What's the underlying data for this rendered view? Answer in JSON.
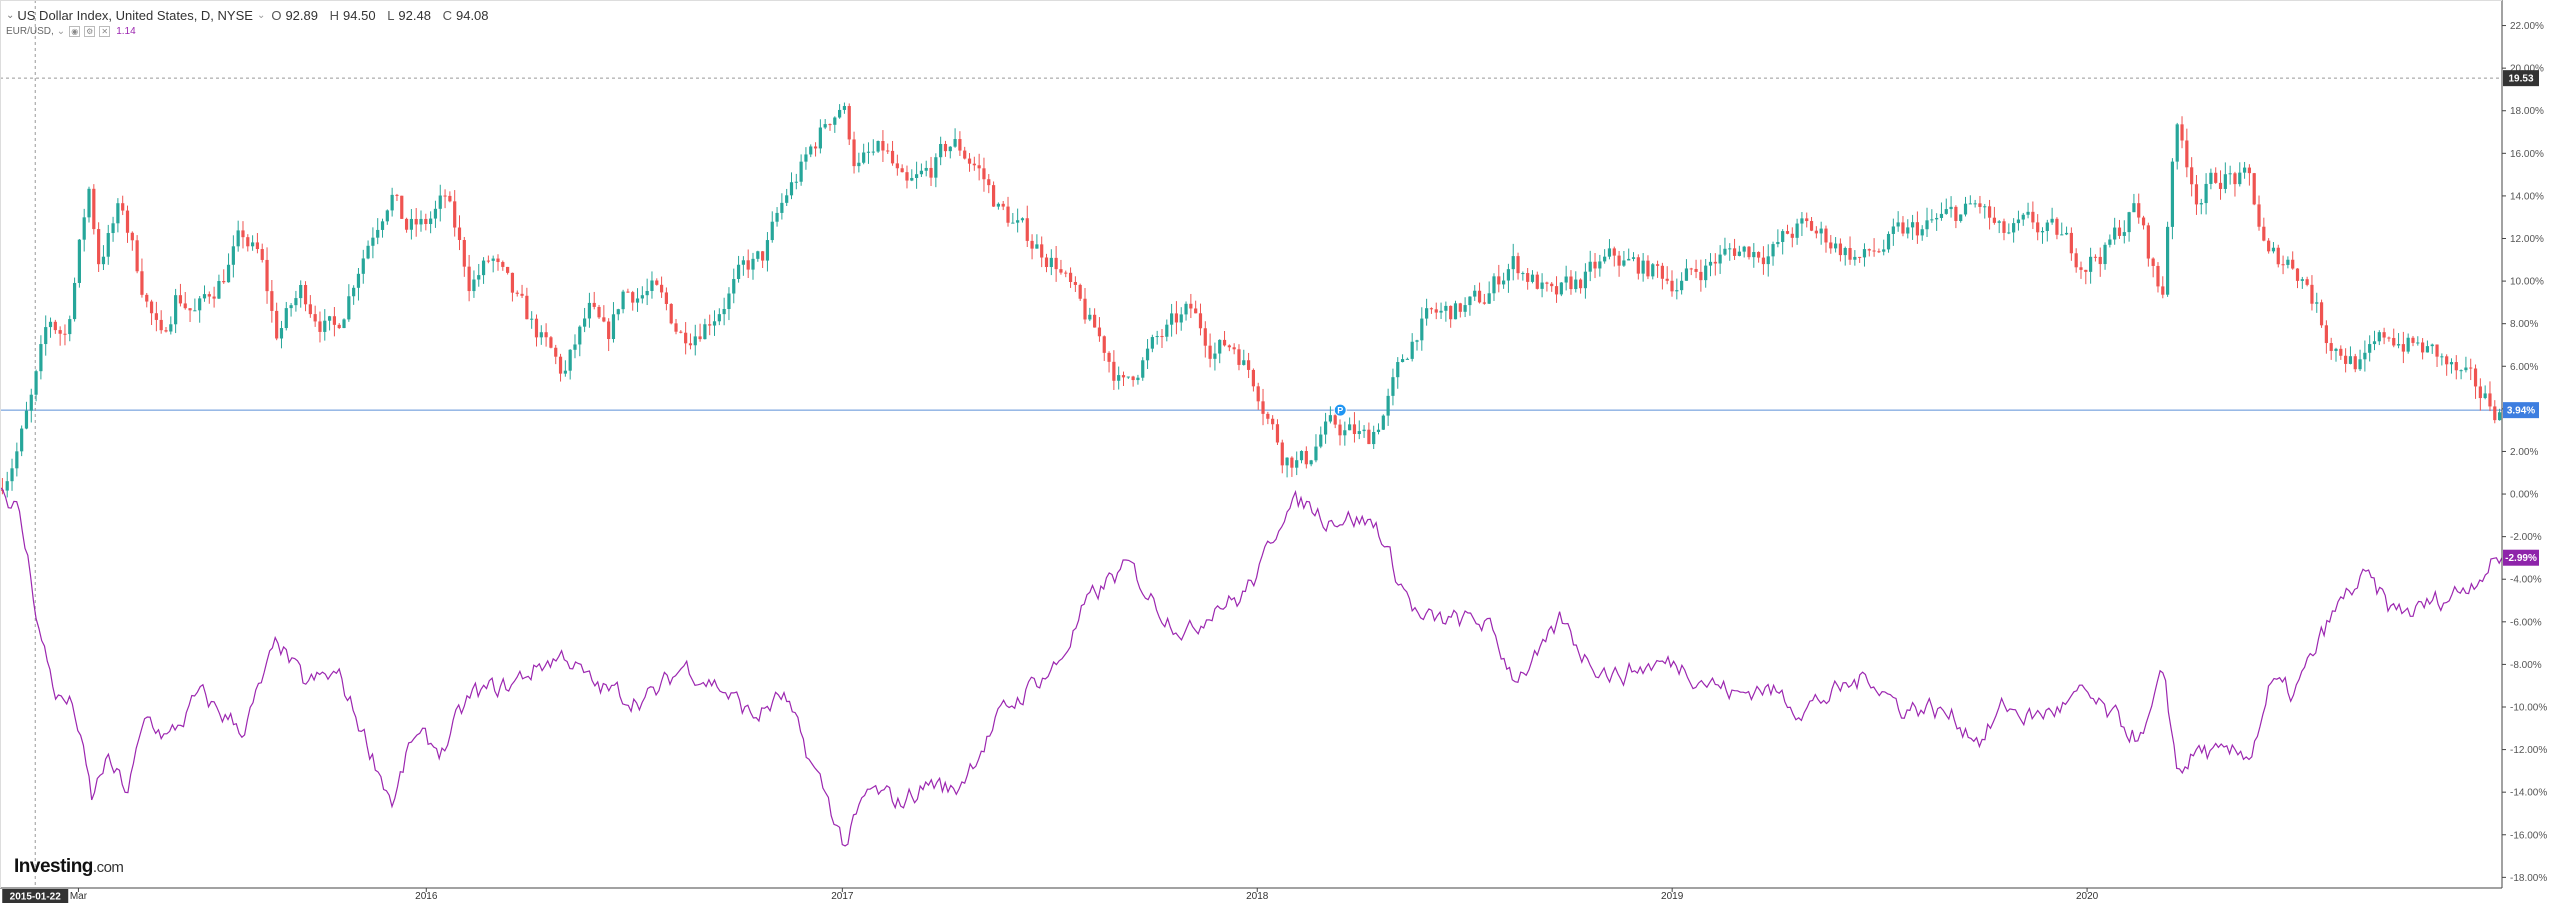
{
  "legend": {
    "main_title": "US Dollar Index, United States, D, NYSE",
    "o_label": "O",
    "o_value": "92.89",
    "h_label": "H",
    "h_value": "94.50",
    "l_label": "L",
    "l_value": "92.48",
    "c_label": "C",
    "c_value": "94.08",
    "compare_symbol": "EUR/USD,",
    "compare_value": "1.14"
  },
  "brand": {
    "name": "Investing",
    "suffix": ".com"
  },
  "colors": {
    "up": "#26a69a",
    "down": "#ef5350",
    "compare_line": "#9c27b0",
    "hline": "#5b8fd6",
    "last_tag_blue": "#3d7ee0",
    "last_tag_purple": "#8e24aa",
    "cross_tag": "#333333"
  },
  "markers": {
    "crosshair_date_label": "2015-01-22",
    "event_marker_label": "P",
    "left_edge_label": "2"
  },
  "chart_data": {
    "type": "line",
    "title": "US Dollar Index, United States, D, NYSE",
    "y_unit": "percent change",
    "ylim": [
      -18.5,
      23.2
    ],
    "y_ticks": [
      "22.00%",
      "20.00%",
      "18.00%",
      "16.00%",
      "14.00%",
      "12.00%",
      "10.00%",
      "8.00%",
      "6.00%",
      "4.00%",
      "2.00%",
      "0.00%",
      "-2.00%",
      "-4.00%",
      "-6.00%",
      "-8.00%",
      "-10.00%",
      "-12.00%",
      "-14.00%",
      "-16.00%",
      "-18.00%"
    ],
    "x_ticks": [
      {
        "label": "Mar",
        "date": "2015-03-01"
      },
      {
        "label": "2016",
        "date": "2016-01-01"
      },
      {
        "label": "2017",
        "date": "2017-01-01"
      },
      {
        "label": "2018",
        "date": "2018-01-01"
      },
      {
        "label": "2019",
        "date": "2019-01-01"
      },
      {
        "label": "2020",
        "date": "2020-01-01"
      }
    ],
    "x_range": [
      "2014-12-22",
      "2020-12-31"
    ],
    "grid": false,
    "last_values": {
      "dxy": "3.94%",
      "eurusd": "-2.99%",
      "crosshair_y": "19.53"
    },
    "crosshair": {
      "date": "2015-01-22",
      "y": 19.53
    },
    "event_marker_date": "2018-03-15",
    "series": [
      {
        "name": "US Dollar Index",
        "style": "candlestick",
        "points": [
          [
            "2014-12-22",
            0.2
          ],
          [
            "2015-01-10",
            2.5
          ],
          [
            "2015-01-22",
            4.5
          ],
          [
            "2015-02-05",
            8.0
          ],
          [
            "2015-02-20",
            7.5
          ],
          [
            "2015-03-05",
            12.0
          ],
          [
            "2015-03-13",
            14.5
          ],
          [
            "2015-03-20",
            11.0
          ],
          [
            "2015-04-10",
            13.5
          ],
          [
            "2015-04-25",
            10.5
          ],
          [
            "2015-05-15",
            7.0
          ],
          [
            "2015-05-28",
            9.5
          ],
          [
            "2015-06-15",
            8.5
          ],
          [
            "2015-07-10",
            10.5
          ],
          [
            "2015-07-25",
            12.0
          ],
          [
            "2015-08-10",
            11.0
          ],
          [
            "2015-08-24",
            7.5
          ],
          [
            "2015-09-15",
            9.5
          ],
          [
            "2015-10-15",
            7.5
          ],
          [
            "2015-11-05",
            11.0
          ],
          [
            "2015-11-25",
            13.5
          ],
          [
            "2015-12-03",
            14.5
          ],
          [
            "2015-12-15",
            12.5
          ],
          [
            "2016-01-01",
            12.5
          ],
          [
            "2016-01-20",
            13.8
          ],
          [
            "2016-02-10",
            10.0
          ],
          [
            "2016-03-01",
            11.0
          ],
          [
            "2016-03-20",
            9.0
          ],
          [
            "2016-04-10",
            7.5
          ],
          [
            "2016-05-03",
            5.5
          ],
          [
            "2016-05-25",
            8.5
          ],
          [
            "2016-06-10",
            7.0
          ],
          [
            "2016-06-24",
            9.5
          ],
          [
            "2016-07-20",
            9.5
          ],
          [
            "2016-08-15",
            7.5
          ],
          [
            "2016-09-10",
            8.5
          ],
          [
            "2016-10-10",
            10.5
          ],
          [
            "2016-10-25",
            11.0
          ],
          [
            "2016-11-15",
            14.0
          ],
          [
            "2016-12-01",
            15.5
          ],
          [
            "2016-12-20",
            17.5
          ],
          [
            "2017-01-03",
            18.5
          ],
          [
            "2017-01-15",
            15.5
          ],
          [
            "2017-02-10",
            16.0
          ],
          [
            "2017-02-28",
            14.0
          ],
          [
            "2017-03-20",
            15.0
          ],
          [
            "2017-04-10",
            16.5
          ],
          [
            "2017-05-01",
            15.5
          ],
          [
            "2017-05-20",
            13.5
          ],
          [
            "2017-06-15",
            12.0
          ],
          [
            "2017-07-10",
            11.0
          ],
          [
            "2017-08-01",
            8.5
          ],
          [
            "2017-08-20",
            7.0
          ],
          [
            "2017-09-08",
            5.0
          ],
          [
            "2017-09-25",
            6.5
          ],
          [
            "2017-10-15",
            7.5
          ],
          [
            "2017-11-05",
            8.5
          ],
          [
            "2017-11-25",
            7.0
          ],
          [
            "2017-12-15",
            7.0
          ],
          [
            "2018-01-05",
            5.0
          ],
          [
            "2018-01-25",
            2.0
          ],
          [
            "2018-02-15",
            1.5
          ],
          [
            "2018-03-01",
            3.0
          ],
          [
            "2018-03-20",
            3.0
          ],
          [
            "2018-04-10",
            2.5
          ],
          [
            "2018-04-25",
            4.0
          ],
          [
            "2018-05-10",
            6.0
          ],
          [
            "2018-05-25",
            8.0
          ],
          [
            "2018-06-20",
            8.5
          ],
          [
            "2018-07-20",
            9.0
          ],
          [
            "2018-08-15",
            11.0
          ],
          [
            "2018-09-05",
            10.0
          ],
          [
            "2018-09-20",
            9.0
          ],
          [
            "2018-10-15",
            10.0
          ],
          [
            "2018-11-12",
            11.0
          ],
          [
            "2018-12-15",
            10.5
          ],
          [
            "2019-01-10",
            10.0
          ],
          [
            "2019-02-10",
            11.0
          ],
          [
            "2019-03-01",
            11.5
          ],
          [
            "2019-04-01",
            11.5
          ],
          [
            "2019-04-25",
            12.5
          ],
          [
            "2019-05-20",
            12.0
          ],
          [
            "2019-06-20",
            11.0
          ],
          [
            "2019-07-20",
            12.0
          ],
          [
            "2019-08-15",
            12.5
          ],
          [
            "2019-09-05",
            13.0
          ],
          [
            "2019-10-01",
            13.5
          ],
          [
            "2019-10-20",
            12.0
          ],
          [
            "2019-11-15",
            12.5
          ],
          [
            "2019-12-10",
            12.0
          ],
          [
            "2019-12-31",
            11.0
          ],
          [
            "2020-01-20",
            11.5
          ],
          [
            "2020-02-15",
            13.5
          ],
          [
            "2020-03-09",
            9.0
          ],
          [
            "2020-03-20",
            17.5
          ],
          [
            "2020-04-10",
            14.0
          ],
          [
            "2020-05-01",
            15.0
          ],
          [
            "2020-05-25",
            14.5
          ],
          [
            "2020-06-10",
            11.0
          ],
          [
            "2020-06-30",
            11.0
          ],
          [
            "2020-07-15",
            10.0
          ],
          [
            "2020-08-01",
            7.5
          ],
          [
            "2020-08-20",
            6.5
          ],
          [
            "2020-09-02",
            6.0
          ],
          [
            "2020-09-25",
            7.5
          ],
          [
            "2020-10-15",
            7.0
          ],
          [
            "2020-11-05",
            6.5
          ],
          [
            "2020-11-25",
            5.5
          ],
          [
            "2020-12-15",
            4.5
          ],
          [
            "2020-12-31",
            3.94
          ]
        ]
      },
      {
        "name": "EUR/USD",
        "style": "line",
        "points": [
          [
            "2014-12-22",
            0.3
          ],
          [
            "2015-01-05",
            -0.5
          ],
          [
            "2015-01-15",
            -3.0
          ],
          [
            "2015-01-28",
            -7.0
          ],
          [
            "2015-02-10",
            -9.5
          ],
          [
            "2015-02-25",
            -10.0
          ],
          [
            "2015-03-13",
            -14.5
          ],
          [
            "2015-03-25",
            -12.5
          ],
          [
            "2015-04-13",
            -14.0
          ],
          [
            "2015-04-30",
            -10.5
          ],
          [
            "2015-05-20",
            -11.5
          ],
          [
            "2015-06-15",
            -9.5
          ],
          [
            "2015-07-10",
            -10.5
          ],
          [
            "2015-07-25",
            -11.0
          ],
          [
            "2015-08-24",
            -7.0
          ],
          [
            "2015-09-15",
            -9.0
          ],
          [
            "2015-10-15",
            -8.5
          ],
          [
            "2015-11-05",
            -11.0
          ],
          [
            "2015-12-03",
            -14.5
          ],
          [
            "2015-12-20",
            -11.5
          ],
          [
            "2016-01-15",
            -12.0
          ],
          [
            "2016-02-10",
            -9.5
          ],
          [
            "2016-03-15",
            -9.0
          ],
          [
            "2016-04-10",
            -8.0
          ],
          [
            "2016-05-03",
            -7.5
          ],
          [
            "2016-05-25",
            -9.0
          ],
          [
            "2016-06-24",
            -9.5
          ],
          [
            "2016-07-20",
            -9.5
          ],
          [
            "2016-08-15",
            -8.0
          ],
          [
            "2016-09-15",
            -9.0
          ],
          [
            "2016-10-15",
            -10.5
          ],
          [
            "2016-11-10",
            -9.5
          ],
          [
            "2016-11-25",
            -11.5
          ],
          [
            "2016-12-20",
            -14.5
          ],
          [
            "2017-01-03",
            -16.5
          ],
          [
            "2017-01-25",
            -14.0
          ],
          [
            "2017-02-20",
            -14.5
          ],
          [
            "2017-03-20",
            -13.5
          ],
          [
            "2017-04-10",
            -14.0
          ],
          [
            "2017-05-01",
            -12.0
          ],
          [
            "2017-05-20",
            -10.5
          ],
          [
            "2017-06-15",
            -9.0
          ],
          [
            "2017-07-10",
            -8.0
          ],
          [
            "2017-08-01",
            -5.5
          ],
          [
            "2017-08-25",
            -4.0
          ],
          [
            "2017-09-10",
            -3.5
          ],
          [
            "2017-10-10",
            -5.5
          ],
          [
            "2017-11-05",
            -6.5
          ],
          [
            "2017-11-25",
            -5.0
          ],
          [
            "2017-12-15",
            -5.0
          ],
          [
            "2018-01-05",
            -3.5
          ],
          [
            "2018-01-25",
            -0.5
          ],
          [
            "2018-02-15",
            -0.5
          ],
          [
            "2018-03-01",
            -1.0
          ],
          [
            "2018-03-20",
            -1.0
          ],
          [
            "2018-04-17",
            -1.5
          ],
          [
            "2018-05-01",
            -3.5
          ],
          [
            "2018-05-25",
            -6.0
          ],
          [
            "2018-06-20",
            -6.0
          ],
          [
            "2018-07-20",
            -6.0
          ],
          [
            "2018-08-15",
            -8.5
          ],
          [
            "2018-09-10",
            -7.5
          ],
          [
            "2018-09-25",
            -6.0
          ],
          [
            "2018-10-15",
            -7.5
          ],
          [
            "2018-11-12",
            -8.5
          ],
          [
            "2018-12-15",
            -8.0
          ],
          [
            "2019-01-10",
            -8.0
          ],
          [
            "2019-02-10",
            -9.0
          ],
          [
            "2019-03-01",
            -9.5
          ],
          [
            "2019-03-20",
            -9.0
          ],
          [
            "2019-04-25",
            -10.0
          ],
          [
            "2019-05-20",
            -9.5
          ],
          [
            "2019-06-25",
            -8.5
          ],
          [
            "2019-07-20",
            -10.0
          ],
          [
            "2019-08-15",
            -10.0
          ],
          [
            "2019-09-05",
            -10.5
          ],
          [
            "2019-10-01",
            -11.5
          ],
          [
            "2019-10-20",
            -10.0
          ],
          [
            "2019-11-15",
            -10.5
          ],
          [
            "2019-12-10",
            -10.0
          ],
          [
            "2019-12-31",
            -9.5
          ],
          [
            "2020-01-20",
            -10.5
          ],
          [
            "2020-02-20",
            -11.5
          ],
          [
            "2020-03-09",
            -8.5
          ],
          [
            "2020-03-20",
            -13.0
          ],
          [
            "2020-04-10",
            -12.0
          ],
          [
            "2020-05-01",
            -12.5
          ],
          [
            "2020-05-25",
            -12.0
          ],
          [
            "2020-06-10",
            -9.0
          ],
          [
            "2020-06-30",
            -9.5
          ],
          [
            "2020-07-15",
            -8.0
          ],
          [
            "2020-08-01",
            -6.0
          ],
          [
            "2020-08-20",
            -4.5
          ],
          [
            "2020-09-02",
            -4.0
          ],
          [
            "2020-09-25",
            -5.5
          ],
          [
            "2020-10-15",
            -5.5
          ],
          [
            "2020-11-05",
            -5.0
          ],
          [
            "2020-11-25",
            -4.5
          ],
          [
            "2020-12-15",
            -3.5
          ],
          [
            "2020-12-31",
            -2.99
          ]
        ]
      }
    ]
  }
}
